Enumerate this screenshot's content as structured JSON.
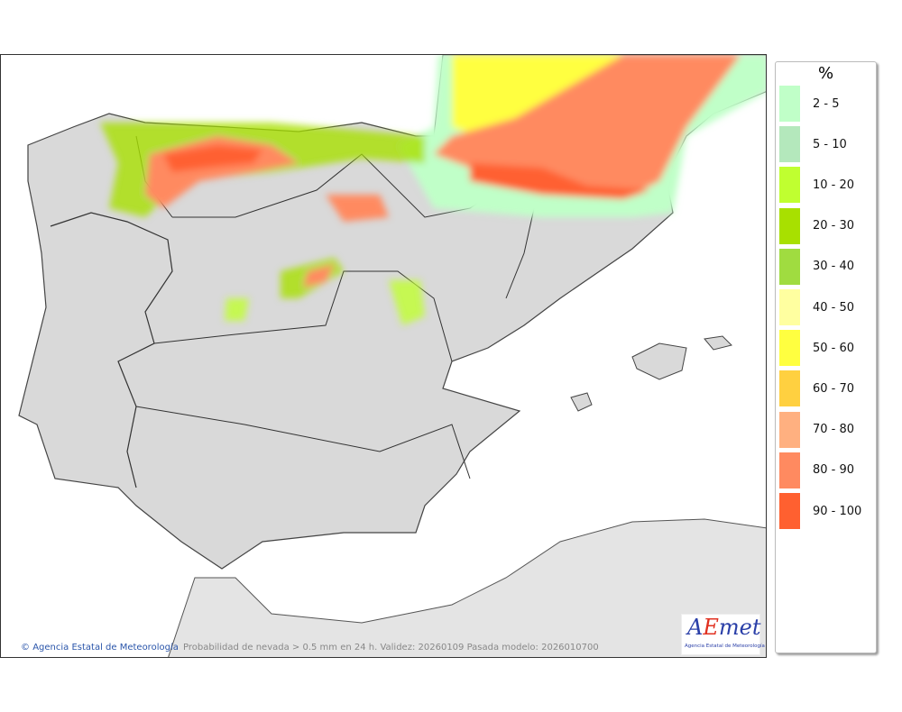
{
  "legend": {
    "title": "%",
    "items": [
      {
        "label": "2 - 5",
        "color": "#c0ffc8"
      },
      {
        "label": "5 - 10",
        "color": "#b4e8bc"
      },
      {
        "label": "10 - 20",
        "color": "#c0ff30"
      },
      {
        "label": "20 - 30",
        "color": "#a8e000"
      },
      {
        "label": "30 - 40",
        "color": "#a0dc40"
      },
      {
        "label": "40 - 50",
        "color": "#ffffa0"
      },
      {
        "label": "50 - 60",
        "color": "#ffff40"
      },
      {
        "label": "60 - 70",
        "color": "#ffd040"
      },
      {
        "label": "70 - 80",
        "color": "#ffb080"
      },
      {
        "label": "80 - 90",
        "color": "#ff8a60"
      },
      {
        "label": "90 - 100",
        "color": "#ff6030"
      }
    ]
  },
  "credit": "Agencia Estatal de Meteorología",
  "caption": "Probabilidad de nevada > 0.5 mm en 24 h. Validez: 20260109 Pasada modelo: 2026010700",
  "logo": {
    "text": "AEmet",
    "subtitle": "Agencia Estatal de Meteorología"
  }
}
